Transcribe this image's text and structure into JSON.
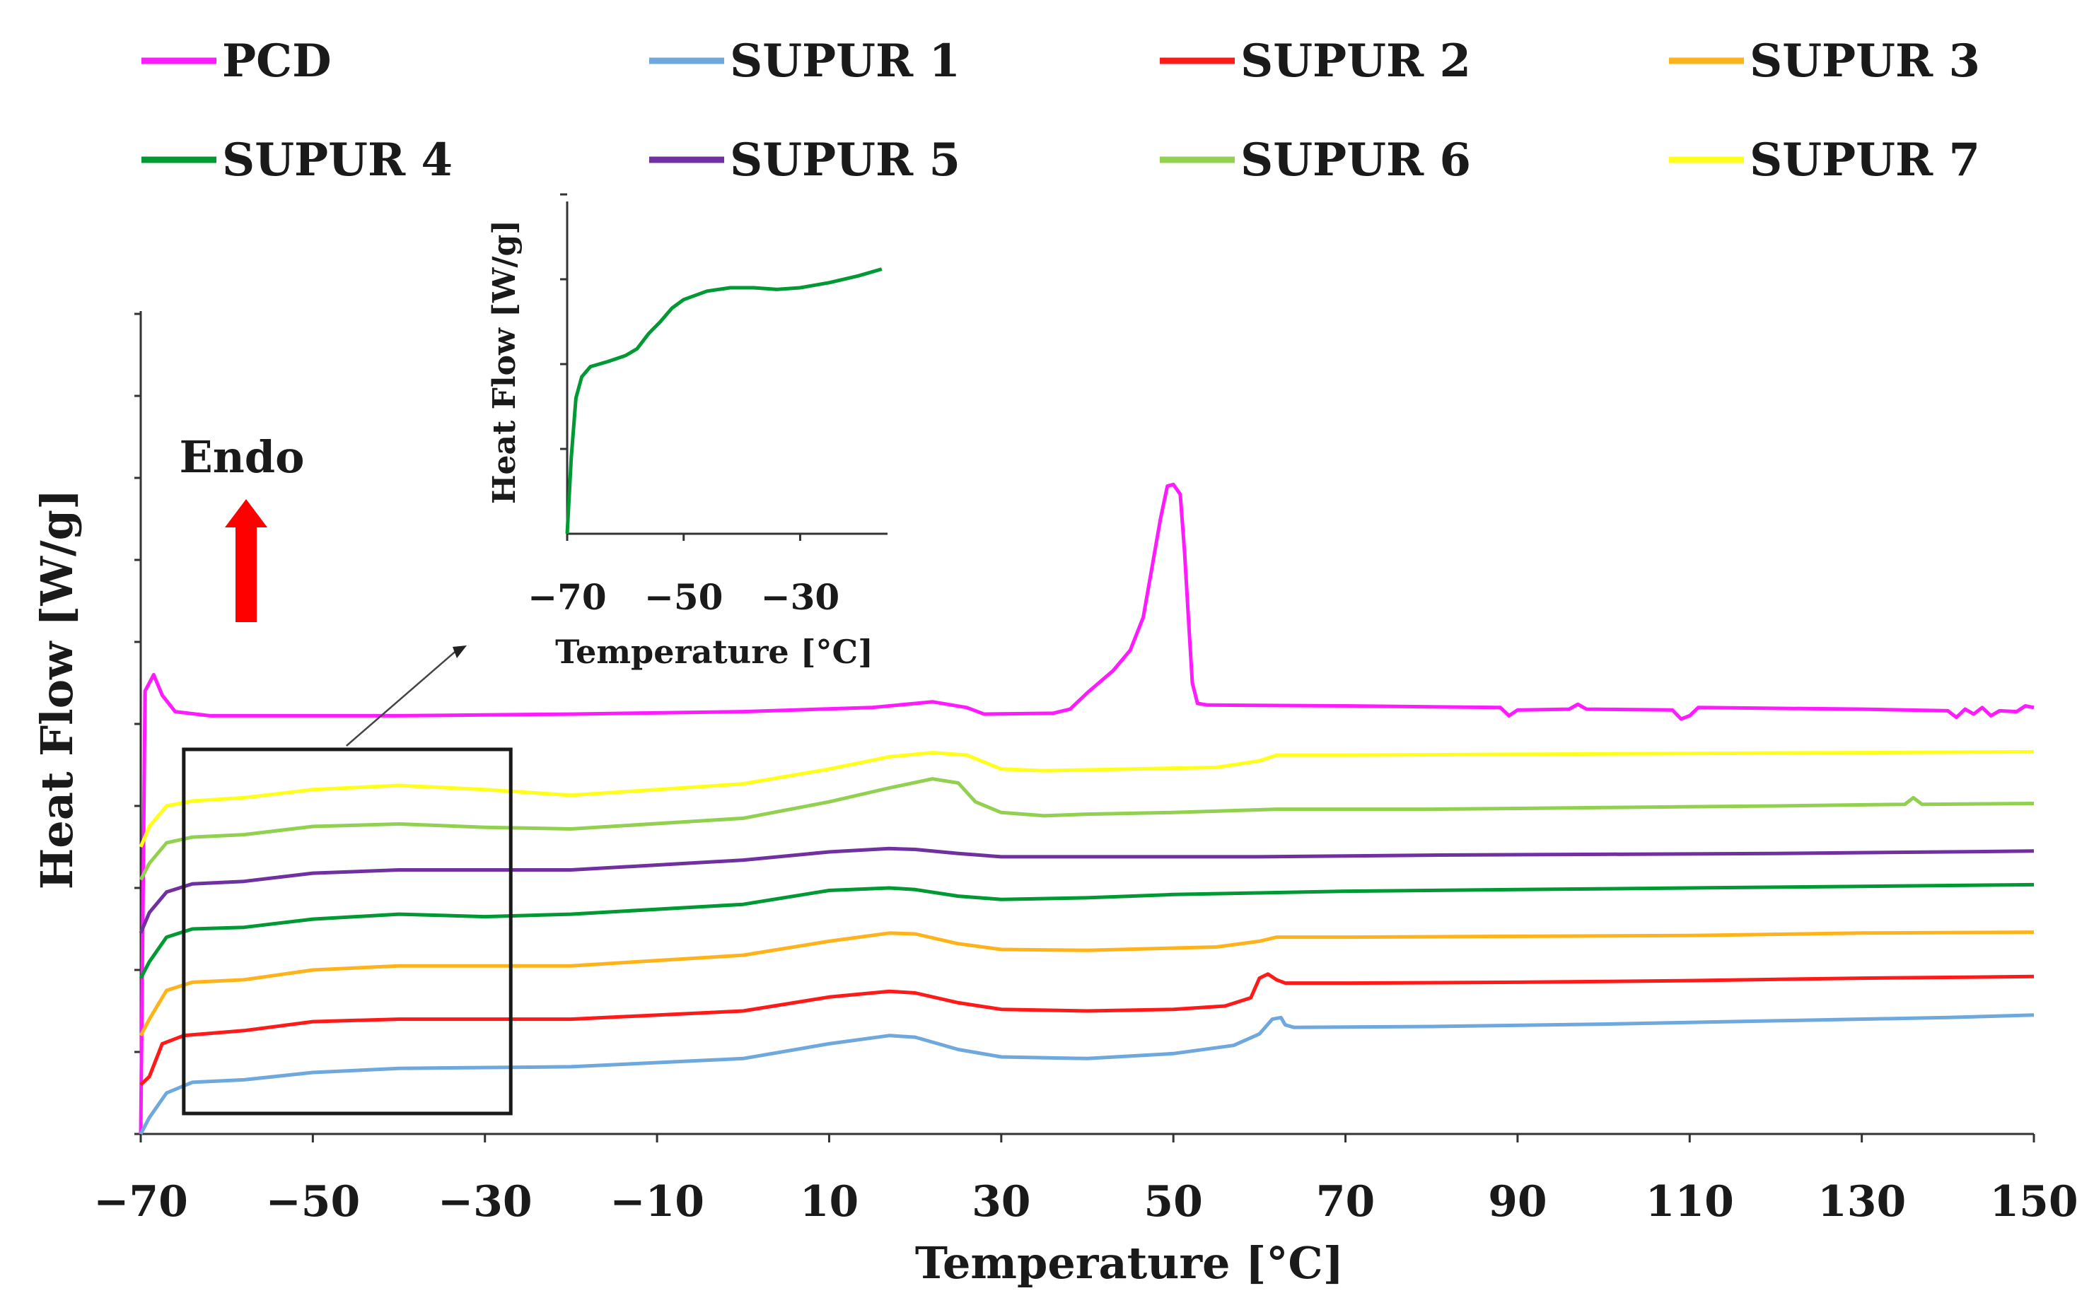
{
  "chart_data": {
    "type": "line",
    "xlabel": "Temperature [°C]",
    "ylabel": "Heat Flow [W/g]",
    "xlim": [
      -70,
      150
    ],
    "x_ticks": [
      "−70",
      "−50",
      "−30",
      "−10",
      "10",
      "30",
      "50",
      "70",
      "90",
      "110",
      "130",
      "150"
    ],
    "y_tick_count": 11,
    "annotation": "Endo",
    "annotation_arrow": "up",
    "legend_position": "top",
    "series": [
      {
        "name": "PCD",
        "color": "#ff1aff",
        "points": [
          [
            -70,
            0
          ],
          [
            -69.5,
            5.4
          ],
          [
            -68.5,
            5.6
          ],
          [
            -67.5,
            5.35
          ],
          [
            -66,
            5.15
          ],
          [
            -62,
            5.1
          ],
          [
            -40,
            5.1
          ],
          [
            -20,
            5.12
          ],
          [
            0,
            5.15
          ],
          [
            15,
            5.2
          ],
          [
            22,
            5.27
          ],
          [
            26,
            5.2
          ],
          [
            28,
            5.12
          ],
          [
            36,
            5.13
          ],
          [
            38,
            5.18
          ],
          [
            40,
            5.38
          ],
          [
            43,
            5.65
          ],
          [
            45,
            5.9
          ],
          [
            46.5,
            6.3
          ],
          [
            47.5,
            6.9
          ],
          [
            48.5,
            7.5
          ],
          [
            49.3,
            7.9
          ],
          [
            50,
            7.92
          ],
          [
            50.8,
            7.8
          ],
          [
            51.3,
            7.1
          ],
          [
            51.8,
            6.2
          ],
          [
            52.2,
            5.5
          ],
          [
            52.8,
            5.25
          ],
          [
            54,
            5.23
          ],
          [
            70,
            5.22
          ],
          [
            88,
            5.2
          ],
          [
            89,
            5.1
          ],
          [
            90,
            5.17
          ],
          [
            96,
            5.18
          ],
          [
            97,
            5.24
          ],
          [
            98,
            5.18
          ],
          [
            108,
            5.17
          ],
          [
            109,
            5.06
          ],
          [
            110,
            5.1
          ],
          [
            111,
            5.2
          ],
          [
            130,
            5.18
          ],
          [
            140,
            5.16
          ],
          [
            141,
            5.08
          ],
          [
            142,
            5.18
          ],
          [
            143,
            5.12
          ],
          [
            144,
            5.2
          ],
          [
            145,
            5.1
          ],
          [
            146,
            5.16
          ],
          [
            148,
            5.15
          ],
          [
            149,
            5.22
          ],
          [
            150,
            5.2
          ]
        ]
      },
      {
        "name": "SUPUR 1",
        "color": "#6fa8dc",
        "points": [
          [
            -70,
            0
          ],
          [
            -69,
            0.2
          ],
          [
            -67,
            0.5
          ],
          [
            -64,
            0.63
          ],
          [
            -58,
            0.66
          ],
          [
            -50,
            0.75
          ],
          [
            -40,
            0.8
          ],
          [
            -20,
            0.82
          ],
          [
            0,
            0.92
          ],
          [
            10,
            1.1
          ],
          [
            17,
            1.2
          ],
          [
            20,
            1.18
          ],
          [
            25,
            1.03
          ],
          [
            30,
            0.94
          ],
          [
            40,
            0.92
          ],
          [
            50,
            0.98
          ],
          [
            57,
            1.08
          ],
          [
            60,
            1.22
          ],
          [
            61.5,
            1.4
          ],
          [
            62.5,
            1.42
          ],
          [
            63,
            1.33
          ],
          [
            64,
            1.3
          ],
          [
            80,
            1.31
          ],
          [
            100,
            1.34
          ],
          [
            120,
            1.38
          ],
          [
            140,
            1.42
          ],
          [
            150,
            1.45
          ]
        ]
      },
      {
        "name": "SUPUR 2",
        "color": "#ff1a1a",
        "points": [
          [
            -70,
            0.6
          ],
          [
            -69,
            0.7
          ],
          [
            -67.5,
            1.1
          ],
          [
            -65,
            1.2
          ],
          [
            -58,
            1.26
          ],
          [
            -50,
            1.37
          ],
          [
            -40,
            1.4
          ],
          [
            -20,
            1.4
          ],
          [
            0,
            1.5
          ],
          [
            10,
            1.67
          ],
          [
            17,
            1.74
          ],
          [
            20,
            1.72
          ],
          [
            25,
            1.6
          ],
          [
            30,
            1.52
          ],
          [
            40,
            1.5
          ],
          [
            50,
            1.52
          ],
          [
            56,
            1.56
          ],
          [
            59,
            1.66
          ],
          [
            60,
            1.9
          ],
          [
            61,
            1.95
          ],
          [
            62,
            1.88
          ],
          [
            63,
            1.84
          ],
          [
            70,
            1.84
          ],
          [
            90,
            1.85
          ],
          [
            110,
            1.87
          ],
          [
            130,
            1.9
          ],
          [
            150,
            1.92
          ]
        ]
      },
      {
        "name": "SUPUR 3",
        "color": "#ffb31a",
        "points": [
          [
            -70,
            1.2
          ],
          [
            -69,
            1.4
          ],
          [
            -67,
            1.75
          ],
          [
            -64,
            1.85
          ],
          [
            -58,
            1.88
          ],
          [
            -50,
            2.0
          ],
          [
            -40,
            2.05
          ],
          [
            -20,
            2.05
          ],
          [
            0,
            2.18
          ],
          [
            10,
            2.35
          ],
          [
            17,
            2.45
          ],
          [
            20,
            2.44
          ],
          [
            25,
            2.32
          ],
          [
            30,
            2.25
          ],
          [
            40,
            2.24
          ],
          [
            55,
            2.28
          ],
          [
            60,
            2.35
          ],
          [
            62,
            2.4
          ],
          [
            70,
            2.4
          ],
          [
            90,
            2.41
          ],
          [
            110,
            2.42
          ],
          [
            130,
            2.45
          ],
          [
            150,
            2.46
          ]
        ]
      },
      {
        "name": "SUPUR 4",
        "color": "#009933",
        "points": [
          [
            -70,
            1.9
          ],
          [
            -69,
            2.1
          ],
          [
            -67,
            2.4
          ],
          [
            -64,
            2.5
          ],
          [
            -58,
            2.52
          ],
          [
            -50,
            2.62
          ],
          [
            -40,
            2.68
          ],
          [
            -30,
            2.65
          ],
          [
            -20,
            2.68
          ],
          [
            0,
            2.8
          ],
          [
            10,
            2.97
          ],
          [
            17,
            3.0
          ],
          [
            20,
            2.98
          ],
          [
            25,
            2.9
          ],
          [
            30,
            2.86
          ],
          [
            40,
            2.88
          ],
          [
            50,
            2.92
          ],
          [
            60,
            2.94
          ],
          [
            70,
            2.96
          ],
          [
            90,
            2.98
          ],
          [
            110,
            3.0
          ],
          [
            130,
            3.02
          ],
          [
            150,
            3.04
          ]
        ]
      },
      {
        "name": "SUPUR 5",
        "color": "#7030a0",
        "points": [
          [
            -70,
            2.45
          ],
          [
            -69,
            2.7
          ],
          [
            -67,
            2.95
          ],
          [
            -64,
            3.05
          ],
          [
            -58,
            3.08
          ],
          [
            -50,
            3.18
          ],
          [
            -40,
            3.22
          ],
          [
            -20,
            3.22
          ],
          [
            0,
            3.34
          ],
          [
            10,
            3.44
          ],
          [
            17,
            3.48
          ],
          [
            20,
            3.47
          ],
          [
            25,
            3.42
          ],
          [
            30,
            3.38
          ],
          [
            40,
            3.38
          ],
          [
            60,
            3.38
          ],
          [
            80,
            3.4
          ],
          [
            100,
            3.41
          ],
          [
            120,
            3.42
          ],
          [
            150,
            3.45
          ]
        ]
      },
      {
        "name": "SUPUR 6",
        "color": "#92d050",
        "points": [
          [
            -70,
            3.1
          ],
          [
            -69,
            3.3
          ],
          [
            -67,
            3.55
          ],
          [
            -64,
            3.62
          ],
          [
            -58,
            3.65
          ],
          [
            -50,
            3.75
          ],
          [
            -40,
            3.78
          ],
          [
            -30,
            3.74
          ],
          [
            -20,
            3.72
          ],
          [
            0,
            3.85
          ],
          [
            10,
            4.05
          ],
          [
            17,
            4.22
          ],
          [
            22,
            4.33
          ],
          [
            25,
            4.28
          ],
          [
            27,
            4.05
          ],
          [
            30,
            3.92
          ],
          [
            35,
            3.88
          ],
          [
            40,
            3.9
          ],
          [
            50,
            3.92
          ],
          [
            62,
            3.96
          ],
          [
            80,
            3.96
          ],
          [
            100,
            3.98
          ],
          [
            120,
            4.0
          ],
          [
            135,
            4.02
          ],
          [
            136,
            4.1
          ],
          [
            137,
            4.02
          ],
          [
            150,
            4.03
          ]
        ]
      },
      {
        "name": "SUPUR 7",
        "color": "#ffff1a",
        "points": [
          [
            -70,
            3.5
          ],
          [
            -69,
            3.75
          ],
          [
            -67,
            4.0
          ],
          [
            -64,
            4.06
          ],
          [
            -58,
            4.1
          ],
          [
            -50,
            4.2
          ],
          [
            -40,
            4.25
          ],
          [
            -30,
            4.2
          ],
          [
            -20,
            4.13
          ],
          [
            0,
            4.27
          ],
          [
            10,
            4.45
          ],
          [
            17,
            4.6
          ],
          [
            22,
            4.65
          ],
          [
            26,
            4.62
          ],
          [
            30,
            4.45
          ],
          [
            35,
            4.43
          ],
          [
            45,
            4.45
          ],
          [
            55,
            4.47
          ],
          [
            60,
            4.55
          ],
          [
            62,
            4.62
          ],
          [
            70,
            4.62
          ],
          [
            90,
            4.63
          ],
          [
            110,
            4.64
          ],
          [
            130,
            4.65
          ],
          [
            150,
            4.66
          ]
        ]
      }
    ],
    "selection_box": {
      "x_range": [
        -65,
        -27
      ]
    },
    "inset": {
      "series_name": "SUPUR 4",
      "color": "#009933",
      "xlim": [
        -70,
        -15
      ],
      "x_ticks": [
        "−70",
        "−50",
        "−30"
      ],
      "xlabel": "Temperature [°C]",
      "ylabel": "Heat Flow [W/g]",
      "y_tick_count": 4,
      "points": [
        [
          -70,
          0
        ],
        [
          -69.3,
          0.9
        ],
        [
          -68.5,
          1.6
        ],
        [
          -67.5,
          1.85
        ],
        [
          -66,
          1.97
        ],
        [
          -63,
          2.03
        ],
        [
          -60,
          2.1
        ],
        [
          -58,
          2.18
        ],
        [
          -56,
          2.36
        ],
        [
          -54,
          2.5
        ],
        [
          -52,
          2.66
        ],
        [
          -50,
          2.76
        ],
        [
          -46,
          2.86
        ],
        [
          -42,
          2.9
        ],
        [
          -38,
          2.9
        ],
        [
          -34,
          2.88
        ],
        [
          -30,
          2.9
        ],
        [
          -25,
          2.96
        ],
        [
          -20,
          3.04
        ],
        [
          -16,
          3.12
        ]
      ]
    }
  }
}
